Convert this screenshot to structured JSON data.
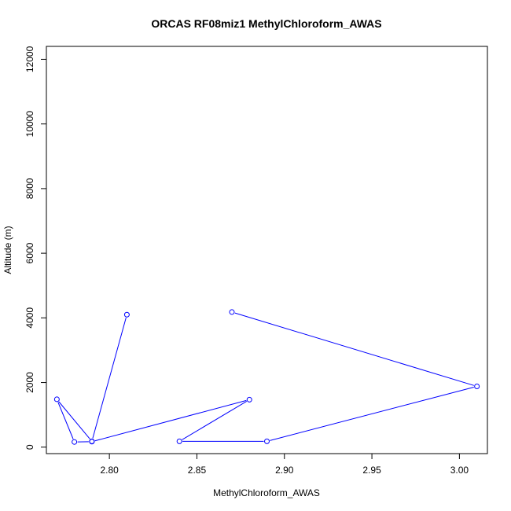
{
  "chart_data": {
    "type": "line",
    "title": "ORCAS RF08miz1 MethylChloroform_AWAS",
    "xlabel": "MethylChloroform_AWAS",
    "ylabel": "Altitude (m)",
    "xlim": [
      2.764,
      3.016
    ],
    "ylim": [
      -200,
      12400
    ],
    "xticks": [
      2.8,
      2.85,
      2.9,
      2.95,
      3.0
    ],
    "xtick_labels": [
      "2.80",
      "2.85",
      "2.90",
      "2.95",
      "3.00"
    ],
    "yticks": [
      0,
      2000,
      4000,
      6000,
      8000,
      10000,
      12000
    ],
    "ytick_labels": [
      "0",
      "2000",
      "4000",
      "6000",
      "8000",
      "10000",
      "12000"
    ],
    "series": [
      {
        "color": "#0000ff",
        "x": [
          2.81,
          2.79,
          2.77,
          2.78,
          2.79,
          2.88,
          2.84,
          2.89,
          3.01,
          2.87
        ],
        "y": [
          4100,
          180,
          1480,
          160,
          170,
          1470,
          180,
          180,
          1880,
          4180
        ]
      }
    ]
  }
}
